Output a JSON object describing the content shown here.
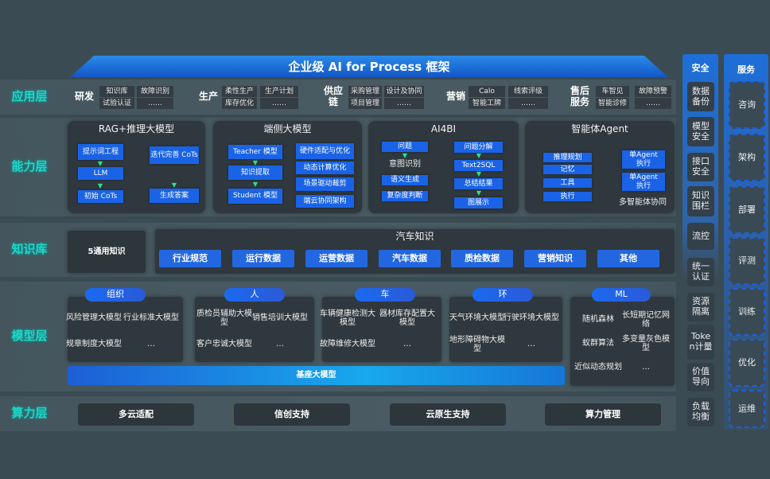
{
  "title": "企业级 AI for Process 框架",
  "layers": {
    "application": "应用层",
    "capability": "能力层",
    "knowledge": "知识库",
    "model": "模型层",
    "compute": "算力层"
  },
  "application": {
    "groups": [
      {
        "name": "研发",
        "items": [
          "知识库",
          "故障识别",
          "试验认证",
          "……"
        ]
      },
      {
        "name": "生产",
        "items": [
          "柔性生产",
          "生产计划",
          "库存优化",
          "……"
        ]
      },
      {
        "name": "供应链",
        "items": [
          "采购管理",
          "设计及协同",
          "项目管理",
          "……"
        ]
      },
      {
        "name": "营销",
        "items": [
          "Calo",
          "线索评级",
          "智能工牌",
          "……"
        ]
      },
      {
        "name": "售后服务",
        "items": [
          "车智见",
          "故障预警",
          "智能诊修",
          "……"
        ]
      }
    ]
  },
  "capability": {
    "rag": {
      "title": "RAG+推理大模型",
      "boxes": [
        "提示词工程",
        "LLM",
        "初始 CoTs",
        "迭代完善 CoTs",
        "生成答案"
      ]
    },
    "edge": {
      "title": "端侧大模型",
      "left": [
        "Teacher 模型",
        "知识提取",
        "Student 模型"
      ],
      "right": [
        "硬件适配与优化",
        "动态计算优化",
        "场景驱动裁剪",
        "端云协同架构"
      ]
    },
    "ai4bi": {
      "title": "AI4BI",
      "left": [
        "问题",
        "意图识别",
        "语义生成",
        "复杂度判断"
      ],
      "right": [
        "问题分解",
        "Text2SQL",
        "总结结果",
        "图展示"
      ]
    },
    "agent": {
      "title": "智能体Agent",
      "left": [
        "推理规划",
        "记忆",
        "工具",
        "执行"
      ],
      "right": [
        "单Agent 执行",
        "单Agent 执行"
      ],
      "caption": "多智能体协同"
    }
  },
  "knowledge": {
    "general": "5通用知识",
    "auto_title": "汽车知识",
    "items": [
      "行业规范",
      "运行数据",
      "运营数据",
      "汽车数据",
      "质检数据",
      "营销知识",
      "其他"
    ]
  },
  "model": {
    "groups": [
      {
        "name": "组织",
        "items": [
          "风险管理大模型",
          "行业标准大模型",
          "规章制度大模型",
          "…"
        ]
      },
      {
        "name": "人",
        "items": [
          "质检员辅助大模型",
          "销售培训大模型",
          "客户忠诚大模型",
          "…"
        ]
      },
      {
        "name": "车",
        "items": [
          "车辆健康检测大模型",
          "器材库存配置大模型",
          "故障维修大模型",
          "…"
        ]
      },
      {
        "name": "环",
        "items": [
          "天气环境大模型",
          "行驶环境大模型",
          "地形障碍物大模型",
          "…"
        ]
      },
      {
        "name": "ML",
        "items": [
          "随机森林",
          "长短期记忆网络",
          "蚁群算法",
          "多变量灰色模型",
          "近似动态规划",
          "…"
        ]
      }
    ],
    "base": "基座大模型"
  },
  "compute": {
    "items": [
      "多云适配",
      "信创支持",
      "云原生支持",
      "算力管理"
    ]
  },
  "security": {
    "title": "安全",
    "items": [
      "数据备份",
      "模型安全",
      "接口安全",
      "知识围栏",
      "流控",
      "统一认证",
      "资源隔离",
      "Token计量",
      "价值导向",
      "负载均衡"
    ]
  },
  "service": {
    "title": "服务",
    "items": [
      "咨询",
      "架构",
      "部署",
      "评测",
      "训练",
      "优化",
      "运维"
    ]
  },
  "colors": {
    "accent_blue": "#1a63e6",
    "layer_label": "#20d6c4",
    "arrow_green": "#2ee08a",
    "background": "#3b4b53"
  }
}
